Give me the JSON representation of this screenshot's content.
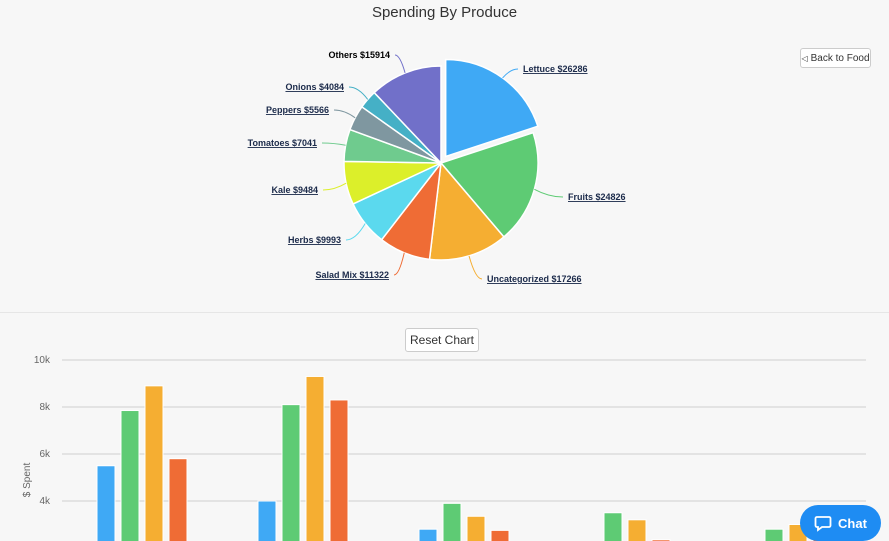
{
  "title": "Spending By Produce",
  "back_button": "Back to Food",
  "reset_button": "Reset Chart",
  "chat_button": "Chat",
  "chart_data": [
    {
      "type": "pie",
      "title": "Spending By Produce",
      "exploded": "Lettuce",
      "slices": [
        {
          "label": "Lettuce $26286",
          "name": "Lettuce",
          "value": 26286,
          "color": "#3fa9f5"
        },
        {
          "label": "Fruits $24826",
          "name": "Fruits",
          "value": 24826,
          "color": "#5ecb74"
        },
        {
          "label": "Uncategorized $17266",
          "name": "Uncategorized",
          "value": 17266,
          "color": "#f5ae32"
        },
        {
          "label": "Salad Mix $11322",
          "name": "Salad Mix",
          "value": 11322,
          "color": "#ef6c35"
        },
        {
          "label": "Herbs $9993",
          "name": "Herbs",
          "value": 9993,
          "color": "#5bd9ee"
        },
        {
          "label": "Kale $9484",
          "name": "Kale",
          "value": 9484,
          "color": "#dcef2a"
        },
        {
          "label": "Tomatoes $7041",
          "name": "Tomatoes",
          "value": 7041,
          "color": "#6fcb8e"
        },
        {
          "label": "Peppers $5566",
          "name": "Peppers",
          "value": 5566,
          "color": "#7f97a0"
        },
        {
          "label": "Onions $4084",
          "name": "Onions",
          "value": 4084,
          "color": "#45b0c6"
        },
        {
          "label": "Others $15914",
          "name": "Others",
          "value": 15914,
          "color": "#7170c9"
        }
      ]
    },
    {
      "type": "bar",
      "ylabel": "$ Spent",
      "yticks": [
        "4k",
        "6k",
        "8k",
        "10k"
      ],
      "ytick_values": [
        4000,
        6000,
        8000,
        10000
      ],
      "visible_ylim": [
        2300,
        10000
      ],
      "grid": true,
      "series": [
        {
          "color": "#3fa9f5",
          "values": [
            5500,
            4000,
            2800,
            null,
            null
          ]
        },
        {
          "color": "#5ecb74",
          "values": [
            7850,
            8100,
            3900,
            3500,
            2800
          ]
        },
        {
          "color": "#f5ae32",
          "values": [
            8900,
            9300,
            3350,
            3200,
            3000
          ]
        },
        {
          "color": "#ef6c35",
          "values": [
            5800,
            8300,
            2750,
            2350,
            2600
          ]
        }
      ]
    }
  ]
}
